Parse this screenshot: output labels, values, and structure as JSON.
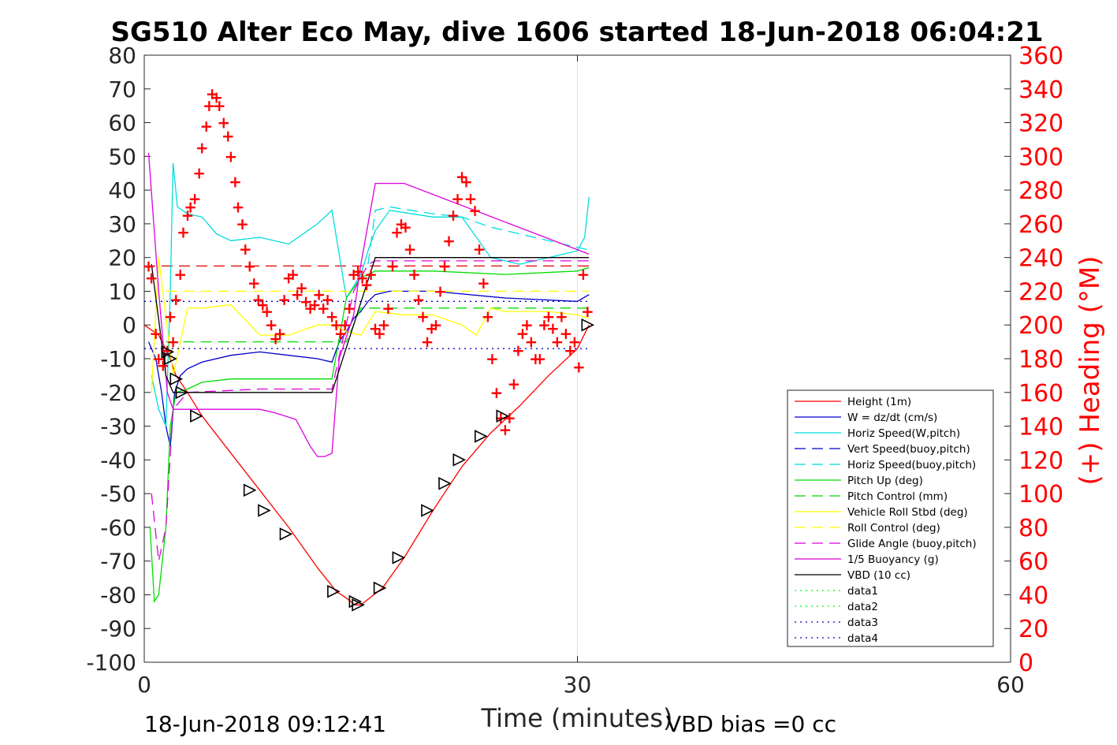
{
  "chart_data": {
    "type": "line",
    "title": "SG510 Alter Eco May, dive 1606 started 18-Jun-2018 06:04:21",
    "xlabel": "Time (minutes)",
    "ylabel_right": "(+) Heading (°M)",
    "footer_left": "18-Jun-2018 09:12:41",
    "footer_right": "VBD bias =0 cc",
    "xlim": [
      0,
      60
    ],
    "ylim_left": [
      -100,
      80
    ],
    "ylim_right": [
      0,
      360
    ],
    "xticks": [
      0,
      30,
      60
    ],
    "yticks_left": [
      80,
      70,
      60,
      50,
      40,
      30,
      20,
      10,
      0,
      -10,
      -20,
      -30,
      -40,
      -50,
      -60,
      -70,
      -80,
      -90,
      -100
    ],
    "yticks_right": [
      360,
      340,
      320,
      300,
      280,
      260,
      240,
      220,
      200,
      180,
      160,
      140,
      120,
      100,
      80,
      60,
      40,
      20,
      0
    ],
    "grid_x": [
      30
    ],
    "legend_placement": "lower-right",
    "colors": {
      "heading": "#ff0000",
      "axes": "#262626"
    },
    "series": [
      {
        "name": "Height (1m)",
        "color": "#ff0000",
        "style": "solid",
        "x": [
          0,
          1,
          1.7,
          2.2,
          3,
          4,
          6,
          8,
          10,
          12,
          13.3,
          14,
          14.6,
          15,
          15.6,
          16.5,
          18,
          20,
          22,
          24,
          26,
          28,
          30,
          30.8
        ],
        "y": [
          0,
          -3,
          -9,
          -15,
          -20,
          -27,
          -38,
          -49,
          -60,
          -72,
          -79,
          -81,
          -83,
          -83,
          -81,
          -78,
          -69,
          -55,
          -42,
          -32,
          -24,
          -15,
          -7,
          0
        ]
      },
      {
        "name": "W = dz/dt (cm/s)",
        "color": "#0000cc",
        "style": "solid",
        "x": [
          0.3,
          0.8,
          1.2,
          1.5,
          1.8,
          2.1,
          2.5,
          3,
          4,
          6,
          8,
          10,
          12,
          13,
          13.5,
          14,
          14.5,
          15,
          15.5,
          16,
          17,
          20,
          25,
          30,
          30.8
        ],
        "y": [
          -5,
          -10,
          -20,
          -30,
          -36,
          -20,
          -15,
          -13,
          -11,
          -9,
          -8,
          -9,
          -10,
          -11,
          -5,
          -2,
          2,
          4,
          7,
          9,
          10,
          10,
          8,
          7,
          9
        ]
      },
      {
        "name": "Horiz Speed(W,pitch)",
        "color": "#00dddd",
        "style": "solid",
        "x": [
          0.5,
          1,
          1.5,
          1.8,
          2,
          2.3,
          3,
          4,
          5,
          6,
          8,
          10,
          11,
          12,
          13,
          14,
          15,
          15.5,
          16,
          17,
          20,
          22,
          24,
          26,
          28,
          30,
          30.5,
          30.8
        ],
        "y": [
          -15,
          -25,
          -30,
          10,
          48,
          35,
          33,
          32,
          27,
          25,
          26,
          24,
          27,
          30,
          34,
          8,
          15,
          22,
          28,
          34,
          32,
          32,
          20,
          18,
          20,
          22,
          26,
          38
        ]
      },
      {
        "name": "Vert Speed(buoy,pitch)",
        "color": "#0000cc",
        "style": "dash",
        "x": [],
        "y": []
      },
      {
        "name": "Horiz Speed(buoy,pitch)",
        "color": "#00dddd",
        "style": "dash",
        "x": [
          15.5,
          16,
          17,
          20,
          22,
          24,
          26,
          28,
          30,
          31
        ],
        "y": [
          18,
          34,
          35,
          33,
          32,
          29,
          27,
          25,
          23,
          22
        ]
      },
      {
        "name": "Pitch Up (deg)",
        "color": "#00dd00",
        "style": "solid",
        "x": [
          0.4,
          0.7,
          1,
          1.5,
          1.8,
          2.2,
          3,
          4,
          6,
          8,
          10,
          12,
          13,
          14,
          15,
          15.5,
          16,
          17,
          20,
          25,
          30,
          30.8
        ],
        "y": [
          -60,
          -82,
          -80,
          -60,
          -30,
          -20,
          -19,
          -17,
          -16,
          -16,
          -16,
          -16,
          -16,
          8,
          14,
          15,
          16,
          16,
          16,
          15,
          16,
          17
        ]
      },
      {
        "name": "Pitch Control (mm)",
        "color": "#00dd00",
        "style": "dash",
        "x": [
          1.5,
          14,
          15,
          30.8
        ],
        "y": [
          -5,
          -5,
          5,
          5
        ]
      },
      {
        "name": "Vehicle Roll Stbd (deg)",
        "color": "#ffff00",
        "style": "solid",
        "x": [
          0.5,
          1,
          2,
          3,
          4,
          6,
          8,
          8.5,
          10,
          12,
          13,
          14,
          15,
          16,
          18,
          20,
          22,
          23,
          24,
          25,
          28,
          30,
          30.8
        ],
        "y": [
          -20,
          20,
          -15,
          5,
          5,
          6,
          -3,
          -3,
          -3,
          0,
          0,
          -2,
          -3,
          4,
          3,
          3,
          0,
          -3,
          5,
          4,
          4,
          3,
          2
        ]
      },
      {
        "name": "Roll Control (deg)",
        "color": "#ffff00",
        "style": "dash",
        "x": [
          1.5,
          14,
          15,
          30.8
        ],
        "y": [
          10,
          10,
          10,
          10
        ]
      },
      {
        "name": "Glide Angle (buoy,pitch)",
        "color": "#dd00dd",
        "style": "dash",
        "x": [
          0.5,
          1,
          1.5,
          2,
          3,
          8,
          13,
          14.5,
          15.5,
          16,
          30.8
        ],
        "y": [
          -50,
          -70,
          -60,
          -25,
          -20,
          -19,
          -19,
          10,
          18,
          19,
          19
        ]
      },
      {
        "name": "1/5 Buoyancy (g)",
        "color": "#dd00dd",
        "style": "solid",
        "x": [
          0.3,
          1,
          1.6,
          2,
          8,
          9,
          10.5,
          11.5,
          12,
          12.5,
          13,
          13.5,
          14.5,
          15,
          16,
          18,
          30.8
        ],
        "y": [
          51,
          10,
          -20,
          -25,
          -25,
          -26,
          -28,
          -36,
          -39,
          -39,
          -38,
          -10,
          3,
          18,
          42,
          42,
          21
        ]
      },
      {
        "name": "VBD (10 cc)",
        "color": "#000000",
        "style": "solid",
        "x": [
          0.5,
          1.5,
          2,
          13,
          14.5,
          16,
          30.8
        ],
        "y": [
          18,
          -15,
          -20,
          -20,
          0,
          20,
          20
        ]
      },
      {
        "name": "data1",
        "color": "#00ff00",
        "style": "dot",
        "x": [],
        "y": []
      },
      {
        "name": "data2",
        "color": "#00ff00",
        "style": "dot",
        "x": [],
        "y": []
      },
      {
        "name": "data3",
        "color": "#0000cc",
        "style": "dot",
        "x": [
          0,
          30.8
        ],
        "y": [
          7,
          7
        ]
      },
      {
        "name": "data4",
        "color": "#0000cc",
        "style": "dot",
        "x": [
          0,
          30.8
        ],
        "y": [
          -7,
          -7
        ]
      }
    ],
    "reference_lines": [
      {
        "color": "#dd0000",
        "style": "dash",
        "axis": "left",
        "y": 17.5,
        "x_from": 0,
        "x_to": 31
      }
    ],
    "heading_points": {
      "axis": "right",
      "marker": "+",
      "color": "#ff0000",
      "x": [
        0.3,
        0.5,
        0.8,
        1,
        1.3,
        1.6,
        1.8,
        2,
        2.2,
        2.5,
        2.7,
        3,
        3.2,
        3.5,
        3.8,
        4,
        4.3,
        4.5,
        4.7,
        5,
        5.2,
        5.5,
        5.8,
        6,
        6.3,
        6.5,
        6.8,
        7,
        7.3,
        7.6,
        7.9,
        8.2,
        8.5,
        8.8,
        9.1,
        9.4,
        9.7,
        10,
        10.3,
        10.6,
        10.9,
        11.2,
        11.5,
        11.8,
        12.1,
        12.4,
        12.7,
        13,
        13.3,
        13.6,
        13.9,
        14.2,
        14.5,
        14.8,
        15.1,
        15.4,
        15.7,
        16,
        16.3,
        16.6,
        16.9,
        17.2,
        17.5,
        17.8,
        18.1,
        18.4,
        18.7,
        19,
        19.3,
        19.6,
        19.9,
        20.2,
        20.5,
        20.8,
        21.1,
        21.4,
        21.7,
        22,
        22.3,
        22.6,
        22.9,
        23.2,
        23.5,
        23.8,
        24.1,
        24.4,
        24.7,
        25,
        25.3,
        25.6,
        25.9,
        26.2,
        26.5,
        26.8,
        27.1,
        27.4,
        27.7,
        28,
        28.3,
        28.6,
        28.9,
        29.2,
        29.5,
        29.8,
        30.1,
        30.4,
        30.7
      ],
      "y": [
        235,
        228,
        195,
        180,
        176,
        185,
        205,
        190,
        215,
        230,
        255,
        265,
        270,
        275,
        290,
        305,
        318,
        330,
        337,
        335,
        330,
        320,
        312,
        300,
        285,
        270,
        260,
        245,
        235,
        225,
        215,
        212,
        208,
        200,
        192,
        195,
        215,
        228,
        230,
        218,
        222,
        214,
        210,
        212,
        218,
        210,
        215,
        205,
        200,
        195,
        200,
        210,
        230,
        232,
        228,
        224,
        230,
        198,
        195,
        200,
        210,
        235,
        255,
        260,
        258,
        245,
        230,
        215,
        205,
        190,
        198,
        200,
        220,
        235,
        250,
        265,
        275,
        288,
        285,
        275,
        268,
        245,
        225,
        205,
        180,
        160,
        145,
        138,
        145,
        165,
        185,
        195,
        200,
        190,
        180,
        180,
        200,
        205,
        198,
        190,
        205,
        195,
        185,
        190,
        175,
        230,
        208
      ]
    },
    "triangle_markers": {
      "color": "#000000",
      "x": [
        1.6,
        1.8,
        2.2,
        2.6,
        3.6,
        7.3,
        8.3,
        9.8,
        13.1,
        14.6,
        14.8,
        16.3,
        17.6,
        19.6,
        20.8,
        21.8,
        23.3,
        24.8,
        30.7
      ],
      "y": [
        -8,
        -10,
        -16,
        -20,
        -27,
        -49,
        -55,
        -62,
        -79,
        -82,
        -83,
        -78,
        -69,
        -55,
        -47,
        -40,
        -33,
        -27,
        0
      ]
    }
  }
}
